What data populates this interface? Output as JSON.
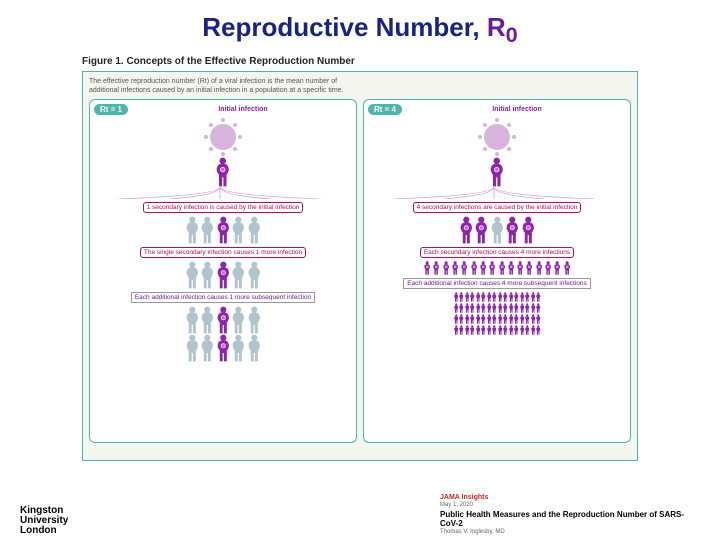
{
  "title_main": "Reproductive Number, ",
  "title_sub_base": "R",
  "title_sub_subscript": "0",
  "figure_label": "Figure 1. Concepts of the Effective Reproduction Number",
  "intro": "The effective reproduction number (Rt) of a viral infection is the mean number of additional infections caused by an initial infection in a population at a specific time.",
  "colors": {
    "title_main": "#1a237e",
    "title_sub": "#6a1b9a",
    "figure_border": "#4db6ac",
    "figure_bg": "#f5f5f0",
    "infected": "#8e24aa",
    "uninfected": "#b0c4cc",
    "virus": "#d8b4dd",
    "caption_border": "#ad1457",
    "badge_bg": "#4db6ac"
  },
  "panels": [
    {
      "rt_label": "Rt = 1",
      "head_label": "Initial infection",
      "rows": [
        {
          "type": "virus_over_person"
        },
        {
          "type": "caption_pill",
          "text": "1 secondary infection is caused by the initial infection"
        },
        {
          "type": "people",
          "count": 5,
          "infected_indices": [
            2
          ],
          "size": 28
        },
        {
          "type": "caption_pill",
          "text": "The single secondary infection causes 1 more infection"
        },
        {
          "type": "people",
          "count": 5,
          "infected_indices": [
            2
          ],
          "size": 28
        },
        {
          "type": "caption_rect",
          "text": "Each additional infection causes 1 more subsequent infection"
        },
        {
          "type": "people",
          "count": 5,
          "infected_indices": [
            2
          ],
          "size": 28
        },
        {
          "type": "people",
          "count": 5,
          "infected_indices": [
            2
          ],
          "size": 28
        }
      ]
    },
    {
      "rt_label": "Rt = 4",
      "head_label": "Initial infection",
      "rows": [
        {
          "type": "virus_over_person"
        },
        {
          "type": "caption_pill",
          "text": "4 secondary infections are caused by the initial infection"
        },
        {
          "type": "people",
          "count": 5,
          "infected_indices": [
            0,
            1,
            3,
            4
          ],
          "size": 28
        },
        {
          "type": "caption_pill",
          "text": "Each secondary infection causes 4 more infections"
        },
        {
          "type": "people",
          "count": 16,
          "infected_indices": "all",
          "size": 14
        },
        {
          "type": "caption_rect",
          "text": "Each additional infection causes 4 more subsequent infections"
        },
        {
          "type": "people_grid",
          "rows": 4,
          "cols": 16,
          "infected": true,
          "size": 10
        }
      ]
    }
  ],
  "footer": {
    "logo_l1": "Kingston",
    "logo_l2": "University",
    "logo_l3": "London",
    "cite_source": "JAMA Insights",
    "cite_date": "May 1, 2020",
    "cite_title": "Public Health Measures and the Reproduction Number of SARS-CoV-2",
    "cite_author": "Thomas V. Inglesby, MD"
  }
}
